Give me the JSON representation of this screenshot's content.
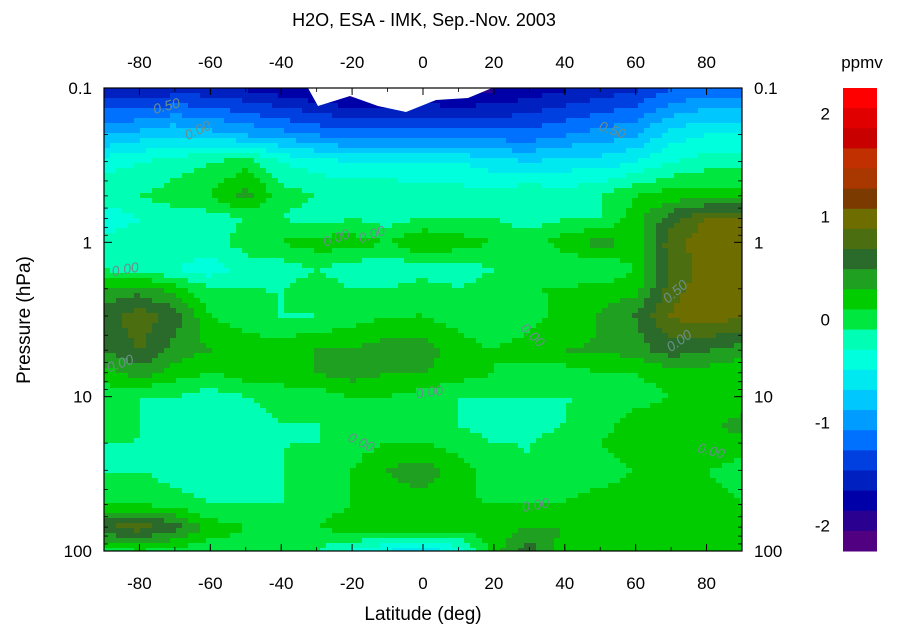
{
  "chart_data": {
    "type": "heatmap",
    "title": "H2O, ESA - IMK, Sep.-Nov. 2003",
    "xlabel": "Latitude (deg)",
    "ylabel": "Pressure (hPa)",
    "colorbar_label": "ppmv",
    "xlim": [
      -90,
      90
    ],
    "ylim": [
      100,
      0.1
    ],
    "y_scale": "log",
    "x_ticks": [
      -80,
      -60,
      -40,
      -20,
      0,
      20,
      40,
      60,
      80
    ],
    "x_tick_labels": [
      "-80",
      "-60",
      "-40",
      "-20",
      "0",
      "20",
      "40",
      "60",
      "80"
    ],
    "y_ticks": [
      0.1,
      1,
      10,
      100
    ],
    "y_tick_labels": [
      "0.1",
      "1",
      "10",
      "100"
    ],
    "colorbar_ticks": [
      2,
      1,
      0,
      -1,
      -2
    ],
    "colorbar_tick_labels": [
      "2",
      "1",
      "0",
      "-1",
      "-2"
    ],
    "colorbar_range": [
      -2.25,
      2.25
    ],
    "colorbar_colors": [
      "#ff0000",
      "#e00000",
      "#c80000",
      "#c03000",
      "#a83800",
      "#7a3a00",
      "#6e6e00",
      "#4a6e10",
      "#2a6a2a",
      "#20a020",
      "#00cc00",
      "#00e840",
      "#00ffb4",
      "#00ffdc",
      "#00e8f0",
      "#00c8ff",
      "#009cff",
      "#0070ff",
      "#0040e0",
      "#0020c0",
      "#0000a8",
      "#2a0090",
      "#500080"
    ],
    "latitudes": [
      -90,
      -80,
      -70,
      -60,
      -50,
      -40,
      -30,
      -20,
      -10,
      0,
      10,
      20,
      30,
      40,
      50,
      60,
      70,
      80,
      90
    ],
    "pressures": [
      0.1,
      0.2,
      0.3,
      0.5,
      0.7,
      1,
      1.5,
      2,
      3,
      5,
      7,
      10,
      15,
      20,
      30,
      50,
      70,
      100
    ],
    "values": [
      [
        -1.6,
        -1.7,
        -1.6,
        -1.6,
        -1.7,
        -1.8,
        -1.9,
        -2.0,
        -2.0,
        -1.9,
        -2.0,
        -1.9,
        -1.8,
        -1.7,
        -1.6,
        -1.5,
        -1.3,
        -1.2,
        -1.2
      ],
      [
        -0.9,
        -0.8,
        -0.7,
        -0.8,
        -0.9,
        -1.0,
        -1.1,
        -1.2,
        -1.2,
        -1.2,
        -1.2,
        -1.2,
        -1.2,
        -1.1,
        -1.0,
        -0.9,
        -0.6,
        -0.5,
        -0.5
      ],
      [
        -0.4,
        -0.3,
        -0.2,
        -0.1,
        0.0,
        -0.3,
        -0.4,
        -0.5,
        -0.5,
        -0.5,
        -0.5,
        -0.6,
        -0.7,
        -0.6,
        -0.6,
        -0.5,
        -0.3,
        -0.2,
        -0.2
      ],
      [
        -0.1,
        -0.1,
        0.0,
        0.1,
        0.4,
        0.0,
        -0.1,
        -0.1,
        -0.1,
        -0.2,
        -0.2,
        -0.2,
        -0.1,
        -0.2,
        -0.1,
        0.1,
        0.2,
        0.2,
        0.2
      ],
      [
        -0.5,
        -0.3,
        -0.2,
        -0.2,
        -0.1,
        -0.1,
        -0.2,
        -0.1,
        -0.2,
        -0.1,
        -0.1,
        -0.1,
        -0.2,
        -0.1,
        -0.1,
        0.2,
        0.6,
        0.9,
        0.9
      ],
      [
        -0.2,
        -0.1,
        -0.1,
        -0.2,
        0.0,
        0.1,
        0.2,
        0.2,
        0.1,
        0.3,
        0.2,
        0.1,
        0.0,
        0.2,
        0.4,
        0.2,
        0.8,
        1.0,
        1.0
      ],
      [
        -0.1,
        -0.2,
        -0.3,
        -0.4,
        -0.2,
        -0.2,
        -0.1,
        -0.2,
        -0.3,
        -0.2,
        -0.2,
        -0.1,
        -0.1,
        -0.1,
        -0.1,
        0.1,
        0.7,
        1.0,
        1.0
      ],
      [
        0.3,
        0.4,
        0.2,
        -0.1,
        -0.1,
        -0.1,
        0.0,
        -0.1,
        -0.1,
        0.0,
        -0.1,
        0.0,
        0.1,
        0.1,
        0.2,
        0.2,
        0.8,
        1.0,
        0.9
      ],
      [
        0.6,
        0.8,
        0.6,
        0.1,
        0.0,
        -0.1,
        -0.1,
        0.0,
        0.1,
        0.1,
        0.0,
        -0.1,
        0.0,
        0.2,
        0.3,
        0.5,
        0.9,
        1.0,
        0.9
      ],
      [
        0.5,
        0.7,
        0.4,
        0.3,
        0.2,
        0.2,
        0.3,
        0.3,
        0.4,
        0.4,
        0.2,
        0.1,
        0.2,
        0.3,
        0.3,
        0.4,
        0.6,
        0.5,
        0.4
      ],
      [
        0.2,
        0.4,
        0.2,
        0.1,
        0.2,
        0.2,
        0.3,
        0.4,
        0.3,
        0.3,
        0.2,
        0.1,
        0.0,
        0.0,
        0.1,
        0.1,
        0.2,
        0.2,
        0.1
      ],
      [
        0.0,
        -0.1,
        -0.1,
        -0.2,
        -0.1,
        0.0,
        0.0,
        0.1,
        0.1,
        0.0,
        -0.1,
        -0.1,
        -0.1,
        -0.1,
        -0.1,
        0.0,
        0.1,
        0.1,
        0.1
      ],
      [
        0.0,
        -0.1,
        -0.1,
        -0.2,
        -0.2,
        -0.1,
        -0.1,
        0.0,
        0.0,
        0.0,
        -0.1,
        -0.2,
        -0.2,
        -0.1,
        0.0,
        0.2,
        0.3,
        0.2,
        0.4
      ],
      [
        -0.1,
        -0.1,
        -0.2,
        -0.2,
        -0.1,
        -0.1,
        -0.1,
        0.0,
        0.1,
        0.1,
        0.0,
        -0.1,
        -0.1,
        0.0,
        0.1,
        0.2,
        0.2,
        0.3,
        0.2
      ],
      [
        -0.1,
        -0.1,
        -0.2,
        -0.2,
        -0.1,
        -0.1,
        0.0,
        0.1,
        0.3,
        0.4,
        0.2,
        0.0,
        -0.1,
        0.0,
        0.0,
        0.1,
        0.1,
        0.1,
        0.0
      ],
      [
        0.1,
        0.1,
        0.0,
        -0.1,
        -0.1,
        -0.1,
        0.0,
        0.1,
        0.2,
        0.2,
        0.1,
        0.1,
        0.1,
        0.1,
        0.2,
        0.2,
        0.2,
        0.2,
        0.1
      ],
      [
        0.7,
        0.8,
        0.6,
        0.2,
        0.1,
        0.0,
        0.1,
        0.2,
        0.3,
        0.3,
        0.2,
        0.2,
        0.3,
        0.3,
        0.2,
        0.2,
        0.2,
        0.2,
        0.2
      ],
      [
        0.0,
        0.1,
        0.0,
        0.0,
        0.0,
        0.1,
        -0.1,
        -0.3,
        -0.5,
        -0.6,
        -0.4,
        0.2,
        0.6,
        0.2,
        0.2,
        0.1,
        0.1,
        0.1,
        0.1
      ]
    ],
    "contour_labels": [
      "0.50",
      "0.00",
      "0.50",
      "0.00",
      "0.00",
      "0.00",
      "0.00",
      "0.50",
      "0.00",
      "0.00",
      "0.00",
      "0.00",
      "0.00",
      "0.00"
    ]
  }
}
